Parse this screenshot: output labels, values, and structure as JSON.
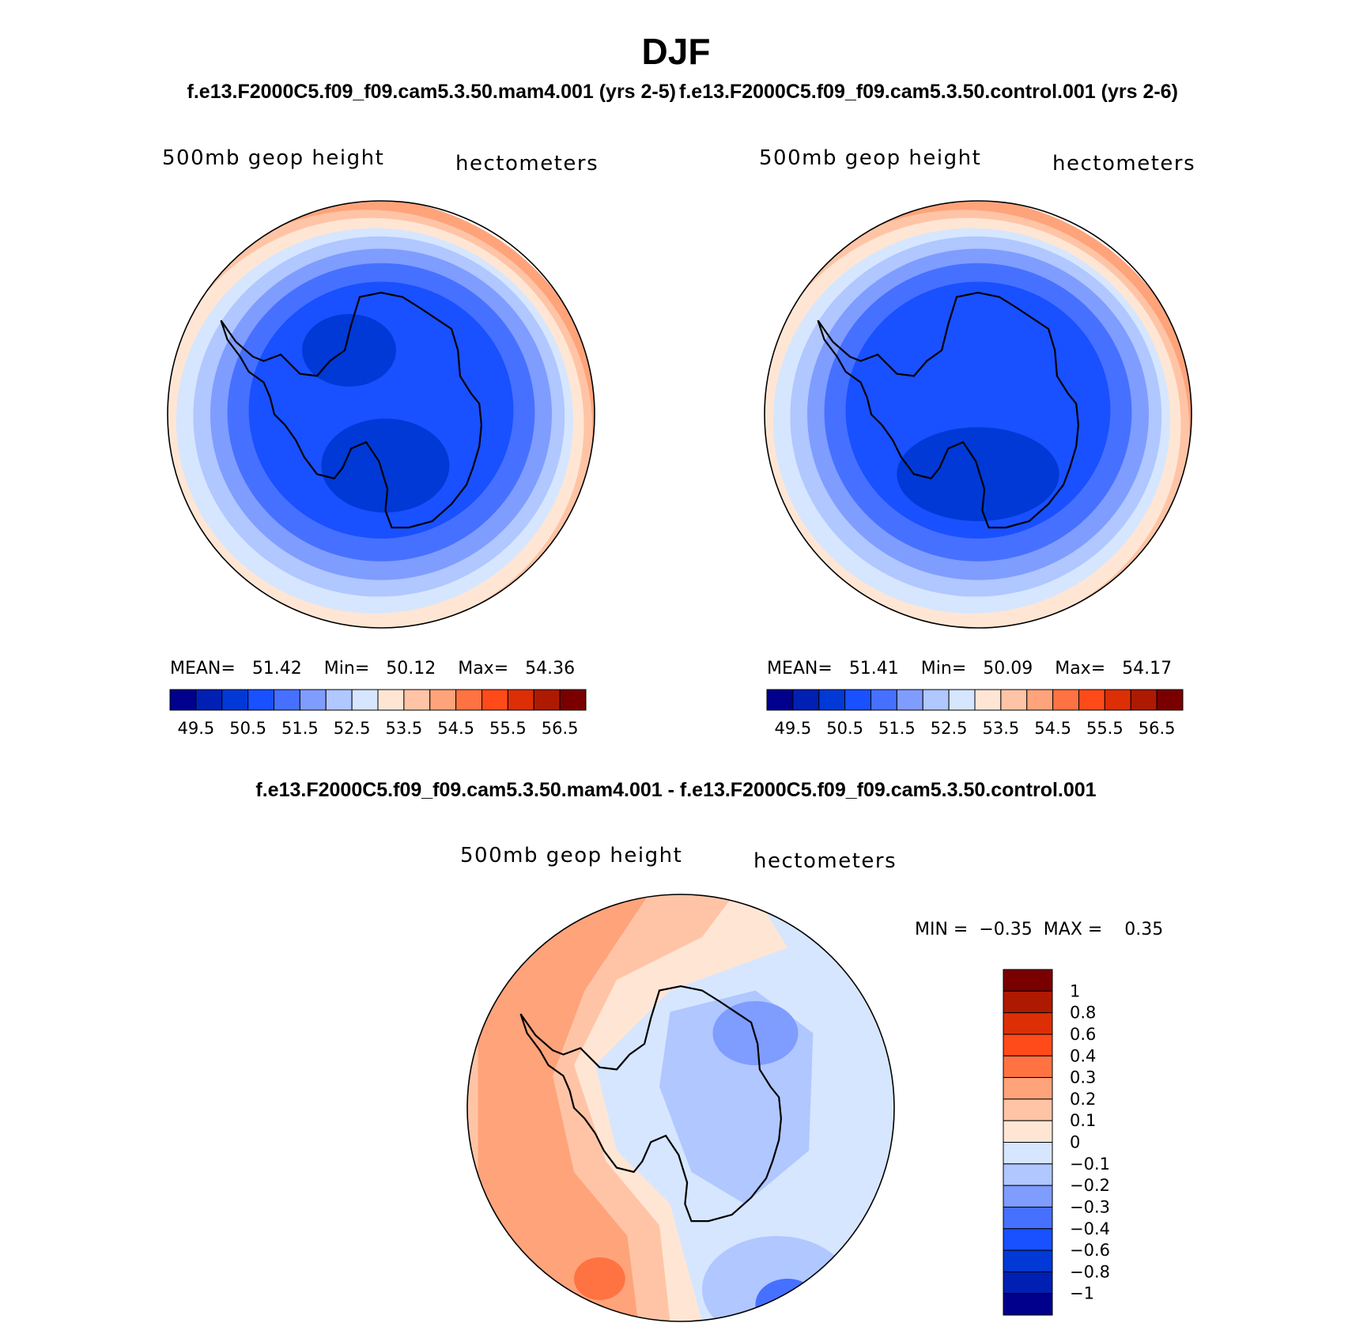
{
  "figure": {
    "title": "DJF",
    "subtitle_left": "f.e13.F2000C5.f09_f09.cam5.3.50.mam4.001 (yrs 2-5)",
    "subtitle_right": "f.e13.F2000C5.f09_f09.cam5.3.50.control.001 (yrs 2-6)",
    "diff_title": "f.e13.F2000C5.f09_f09.cam5.3.50.mam4.001 - f.e13.F2000C5.f09_f09.cam5.3.50.control.001"
  },
  "colors": {
    "abs_scale": [
      "#00008c",
      "#0020b4",
      "#0039d6",
      "#1950ff",
      "#4670ff",
      "#7f9cff",
      "#b0c7ff",
      "#d6e6ff",
      "#ffe6d4",
      "#ffc4a6",
      "#ffa37a",
      "#ff7343",
      "#ff4a19",
      "#dc2f05",
      "#ae1a01",
      "#7a0000"
    ],
    "diff_scale": [
      "#00008c",
      "#0020b4",
      "#0039d6",
      "#1950ff",
      "#4670ff",
      "#7f9cff",
      "#b0c7ff",
      "#d6e6ff",
      "#ffe6d4",
      "#ffc4a6",
      "#ffa37a",
      "#ff7343",
      "#ff4a19",
      "#dc2f05",
      "#ae1a01",
      "#7a0000"
    ]
  },
  "chart_data": [
    {
      "type": "heatmap",
      "projection": "south polar stereographic",
      "variable": "500mb geop height",
      "units": "hectometers",
      "stats": {
        "mean_label": "MEAN=",
        "mean": "51.42",
        "min_label": "Min=",
        "min": "50.12",
        "max_label": "Max=",
        "max": "54.36"
      },
      "colorbar_ticks": [
        "49.5",
        "50.5",
        "51.5",
        "52.5",
        "53.5",
        "54.5",
        "55.5",
        "56.5"
      ],
      "contour_levels": [
        49.25,
        49.5,
        49.75,
        50,
        50.25,
        50.5,
        50.75,
        51,
        51.25,
        51.5,
        51.75,
        52,
        52.25,
        52.5,
        53,
        53.5,
        54,
        54.5,
        55,
        55.5,
        56,
        56.5
      ],
      "pattern": "low over East Antarctica interior, rising to ~54.4 at outer edge near Indian Ocean sector"
    },
    {
      "type": "heatmap",
      "projection": "south polar stereographic",
      "variable": "500mb geop height",
      "units": "hectometers",
      "stats": {
        "mean_label": "MEAN=",
        "mean": "51.41",
        "min_label": "Min=",
        "min": "50.09",
        "max_label": "Max=",
        "max": "54.17"
      },
      "colorbar_ticks": [
        "49.5",
        "50.5",
        "51.5",
        "52.5",
        "53.5",
        "54.5",
        "55.5",
        "56.5"
      ],
      "contour_levels": [
        49.25,
        49.5,
        49.75,
        50,
        50.25,
        50.5,
        50.75,
        51,
        51.25,
        51.5,
        51.75,
        52,
        52.25,
        52.5,
        53,
        53.5,
        54,
        54.5,
        55,
        55.5,
        56,
        56.5
      ],
      "pattern": "similar to mam4 with minimum near Ross Sea"
    },
    {
      "type": "heatmap",
      "projection": "south polar stereographic",
      "variable": "500mb geop height",
      "units": "hectometers",
      "stats": {
        "min_label": "MIN =",
        "min": "−0.35",
        "max_label": "MAX =",
        "max": "0.35"
      },
      "colorbar_ticks": [
        "1",
        "0.8",
        "0.6",
        "0.4",
        "0.3",
        "0.2",
        "0.1",
        "0",
        "−0.1",
        "−0.2",
        "−0.3",
        "−0.4",
        "−0.6",
        "−0.8",
        "−1"
      ],
      "pattern": "positive anomalies (0.1–0.35) over Weddell/South Atlantic sector, negative (−0.1 to −0.35) over East Antarctica and Ross Sea"
    }
  ]
}
